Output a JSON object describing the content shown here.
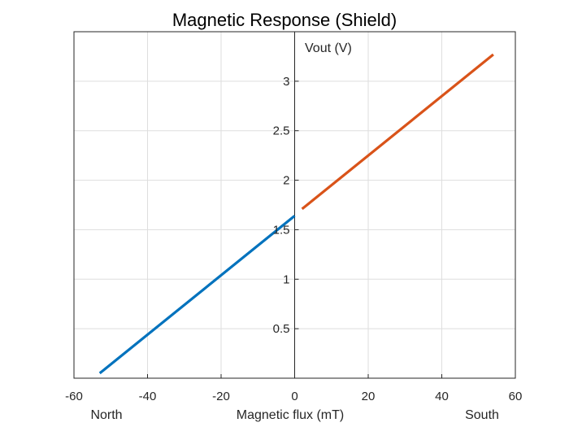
{
  "chart_data": {
    "type": "line",
    "title": "Magnetic Response (Shield)",
    "xlabel": "Magnetic flux (mT)",
    "ylabel": "Vout (V)",
    "x_side_labels": {
      "left": "North",
      "right": "South"
    },
    "xlim": [
      -60,
      60
    ],
    "ylim": [
      0,
      3.5
    ],
    "xticks": [
      -60,
      -40,
      -20,
      0,
      20,
      40,
      60
    ],
    "yticks": [
      0.5,
      1,
      1.5,
      2,
      2.5,
      3
    ],
    "grid": true,
    "series": [
      {
        "color": "#0072BD",
        "x": [
          -53,
          0
        ],
        "y": [
          0.05,
          1.64
        ]
      },
      {
        "color": "#D95319",
        "x": [
          2,
          54
        ],
        "y": [
          1.71,
          3.27
        ]
      }
    ]
  }
}
